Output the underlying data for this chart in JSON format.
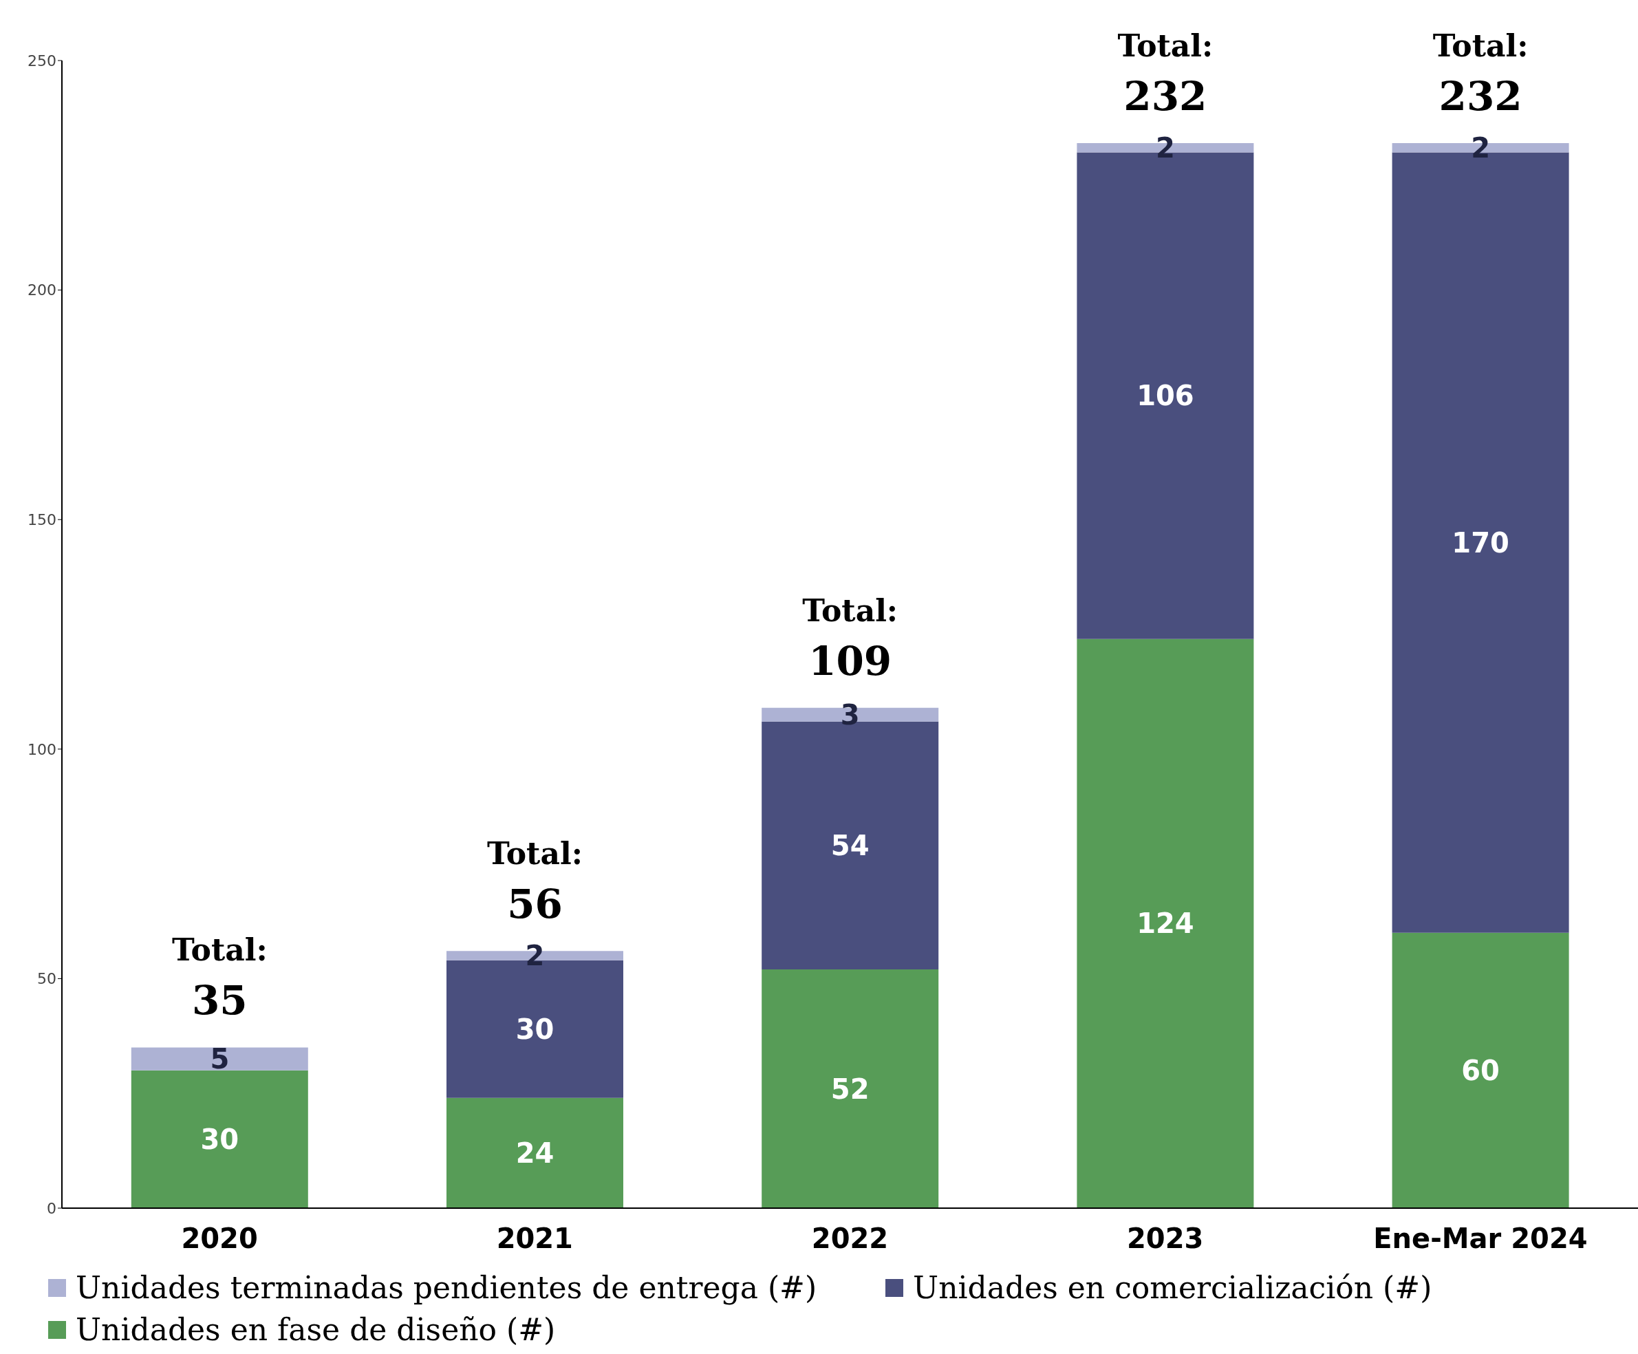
{
  "chart_data": {
    "type": "bar",
    "stacked": true,
    "categories": [
      "2020",
      "2021",
      "2022",
      "2023",
      "Ene-Mar 2024"
    ],
    "series": [
      {
        "name": "Unidades en fase de diseño (#)",
        "color": "#579c57",
        "values": [
          30,
          24,
          52,
          124,
          60
        ]
      },
      {
        "name": "Unidades en comercialización (#)",
        "color": "#4a4f7e",
        "values": [
          null,
          30,
          54,
          106,
          170
        ]
      },
      {
        "name": "Unidades terminadas pendientes de entrega (#)",
        "color": "#adb2d4",
        "values": [
          5,
          2,
          3,
          2,
          2
        ]
      }
    ],
    "ylim": [
      0,
      250
    ],
    "yticks": [
      0,
      50,
      100,
      150,
      200,
      250
    ],
    "grid": false,
    "legend": "bottom",
    "data_labels": true,
    "totals": [
      "Total:\n35",
      "Total:\n56",
      "Total:\n109",
      "Total:\n232",
      "Total:\n232"
    ]
  }
}
